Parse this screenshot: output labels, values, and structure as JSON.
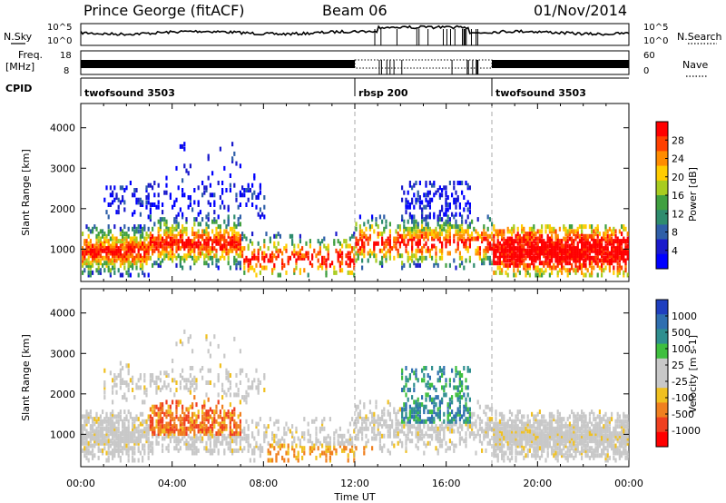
{
  "header": {
    "title": "Prince George (fitACF)",
    "beam": "Beam 06",
    "date": "01/Nov/2014"
  },
  "top_panel": {
    "nsky_label": "N.Sky",
    "nsearch_label": "N.Search",
    "left_ticks": [
      "10^5",
      "10^0"
    ],
    "right_ticks": [
      "10^5",
      "10^0"
    ],
    "freq_label": "Freq.",
    "freq_unit": "[MHz]",
    "freq_ticks": [
      "18",
      "8"
    ],
    "nave_ticks": [
      "60",
      "0"
    ],
    "nave_label": "Nave",
    "cpid_label": "CPID",
    "cpid_segments": [
      {
        "name": "twofsound 3503",
        "start_hour": 0
      },
      {
        "name": "rbsp 200",
        "start_hour": 12
      },
      {
        "name": "twofsound 3503",
        "start_hour": 18
      }
    ]
  },
  "power_colorbar": {
    "label": "Power [dB]",
    "ticks": [
      "28",
      "24",
      "20",
      "16",
      "12",
      "8",
      "4"
    ],
    "colors": [
      "#ff0000",
      "#ff4000",
      "#ff8c00",
      "#ffcc00",
      "#a8cc20",
      "#40a040",
      "#2e8c6e",
      "#2f5fa8",
      "#1a1acc",
      "#0000ff"
    ]
  },
  "velocity_colorbar": {
    "label": "Velocity [m s-1]",
    "ticks": [
      "1000",
      "500",
      "100",
      "25",
      "-25",
      "-100",
      "-500",
      "-1000"
    ],
    "colors": [
      "#1f3fbf",
      "#2f6fb0",
      "#2f8f8f",
      "#3fbf3f",
      "#c8c8c8",
      "#c8c8c8",
      "#f0c020",
      "#f08020",
      "#f04020",
      "#ff0000"
    ]
  },
  "chart_data": [
    {
      "type": "heatmap",
      "name": "power",
      "ylabel": "Slant Range [km]",
      "xlim_hours": [
        0,
        24
      ],
      "ylim_km": [
        200,
        4600
      ],
      "y_ticks": [
        1000,
        2000,
        3000,
        4000
      ],
      "x_tick_labels": [
        "00:00",
        "04:00",
        "08:00",
        "12:00",
        "16:00",
        "20:00",
        "00:00"
      ],
      "dashed_lines_hours": [
        12,
        18
      ],
      "colorbar": "Power [dB]"
    },
    {
      "type": "heatmap",
      "name": "velocity",
      "ylabel": "Slant Range [km]",
      "xlabel": "Time UT",
      "xlim_hours": [
        0,
        24
      ],
      "ylim_km": [
        200,
        4600
      ],
      "y_ticks": [
        1000,
        2000,
        3000,
        4000
      ],
      "x_tick_labels": [
        "00:00",
        "04:00",
        "08:00",
        "12:00",
        "16:00",
        "20:00",
        "00:00"
      ],
      "dashed_lines_hours": [
        12,
        18
      ],
      "colorbar": "Velocity [m s-1]"
    }
  ]
}
